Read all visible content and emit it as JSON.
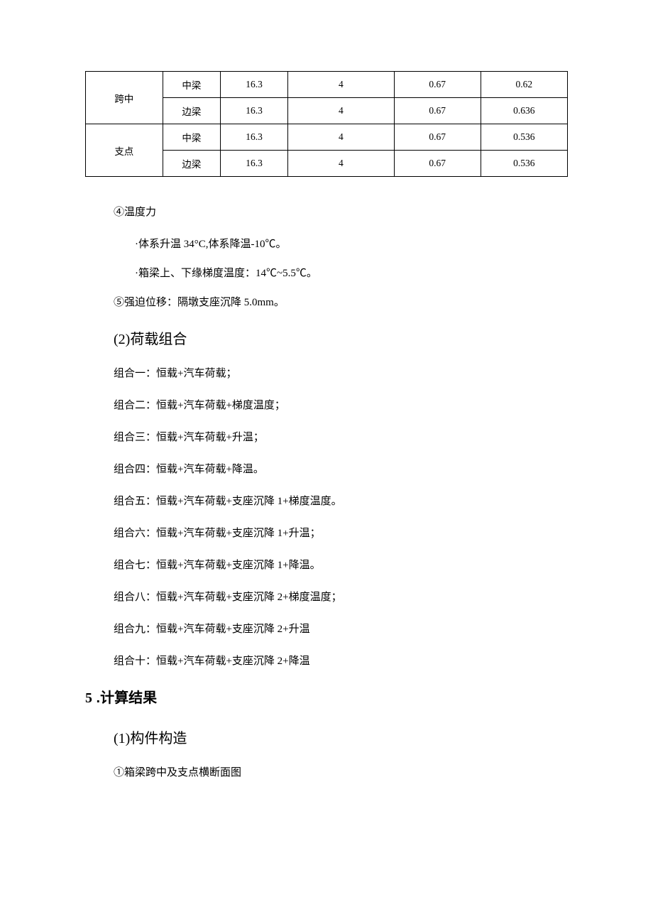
{
  "table": {
    "rows": [
      {
        "group": "跨中",
        "sub": "中梁",
        "c1": "16.3",
        "c2": "4",
        "c3": "0.67",
        "c4": "0.62"
      },
      {
        "group": "跨中",
        "sub": "边梁",
        "c1": "16.3",
        "c2": "4",
        "c3": "0.67",
        "c4": "0.636"
      },
      {
        "group": "支点",
        "sub": "中梁",
        "c1": "16.3",
        "c2": "4",
        "c3": "0.67",
        "c4": "0.536"
      },
      {
        "group": "支点",
        "sub": "边梁",
        "c1": "16.3",
        "c2": "4",
        "c3": "0.67",
        "c4": "0.536"
      }
    ]
  },
  "lines": {
    "l1": "④温度力",
    "l2": "·体系升温 34°C,体系降温-10℃。",
    "l3": "·箱梁上、下缘梯度温度：14℃~5.5℃。",
    "l4": "⑤强迫位移：隔墩支座沉降 5.0mm。",
    "h_load": "(2)荷载组合",
    "c1": "组合一：恒载+汽车荷载；",
    "c2": "组合二：恒载+汽车荷载+梯度温度；",
    "c3": "组合三：恒载+汽车荷载+升温；",
    "c4": "组合四：恒载+汽车荷载+降温。",
    "c5": "组合五：恒载+汽车荷载+支座沉降 1+梯度温度。",
    "c6": "组合六：恒载+汽车荷载+支座沉降 1+升温；",
    "c7": "组合七：恒载+汽车荷载+支座沉降 1+降温。",
    "c8": "组合八：恒载+汽车荷载+支座沉降 2+梯度温度；",
    "c9": "组合九：恒载+汽车荷载+支座沉降 2+升温",
    "c10": "组合十：恒载+汽车荷载+支座沉降 2+降温",
    "h_calc_num": "5",
    "h_calc_text": " .计算结果",
    "h_struct": "(1)构件构造",
    "l5": "①箱梁跨中及支点横断面图"
  }
}
